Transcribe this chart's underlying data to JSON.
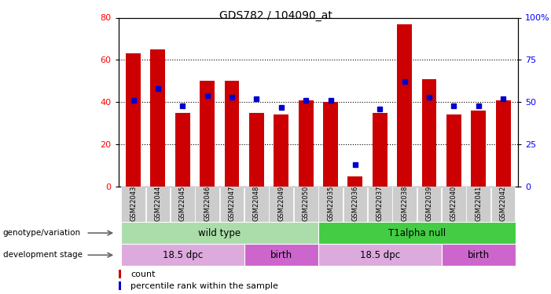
{
  "title": "GDS782 / 104090_at",
  "samples": [
    "GSM22043",
    "GSM22044",
    "GSM22045",
    "GSM22046",
    "GSM22047",
    "GSM22048",
    "GSM22049",
    "GSM22050",
    "GSM22035",
    "GSM22036",
    "GSM22037",
    "GSM22038",
    "GSM22039",
    "GSM22040",
    "GSM22041",
    "GSM22042"
  ],
  "counts": [
    63,
    65,
    35,
    50,
    50,
    35,
    34,
    41,
    40,
    5,
    35,
    77,
    51,
    34,
    36,
    41
  ],
  "percentile": [
    51,
    58,
    48,
    54,
    53,
    52,
    47,
    51,
    51,
    13,
    46,
    62,
    53,
    48,
    48,
    52
  ],
  "left_ylim": [
    0,
    80
  ],
  "right_ylim": [
    0,
    100
  ],
  "left_yticks": [
    0,
    20,
    40,
    60,
    80
  ],
  "right_yticks": [
    0,
    25,
    50,
    75,
    100
  ],
  "right_yticklabels": [
    "0",
    "25",
    "50",
    "75",
    "100%"
  ],
  "bar_color": "#cc0000",
  "dot_color": "#0000cc",
  "genotype_groups": [
    {
      "label": "wild type",
      "start": 0,
      "end": 8,
      "color": "#aaddaa"
    },
    {
      "label": "T1alpha null",
      "start": 8,
      "end": 16,
      "color": "#44cc44"
    }
  ],
  "stage_groups": [
    {
      "label": "18.5 dpc",
      "start": 0,
      "end": 5,
      "color": "#ddaadd"
    },
    {
      "label": "birth",
      "start": 5,
      "end": 8,
      "color": "#cc66cc"
    },
    {
      "label": "18.5 dpc",
      "start": 8,
      "end": 13,
      "color": "#ddaadd"
    },
    {
      "label": "birth",
      "start": 13,
      "end": 16,
      "color": "#cc66cc"
    }
  ],
  "legend_items": [
    {
      "label": "count",
      "color": "#cc0000"
    },
    {
      "label": "percentile rank within the sample",
      "color": "#0000cc"
    }
  ],
  "bar_width": 0.6,
  "dot_size": 5,
  "geno_label": "genotype/variation",
  "stage_label": "development stage"
}
